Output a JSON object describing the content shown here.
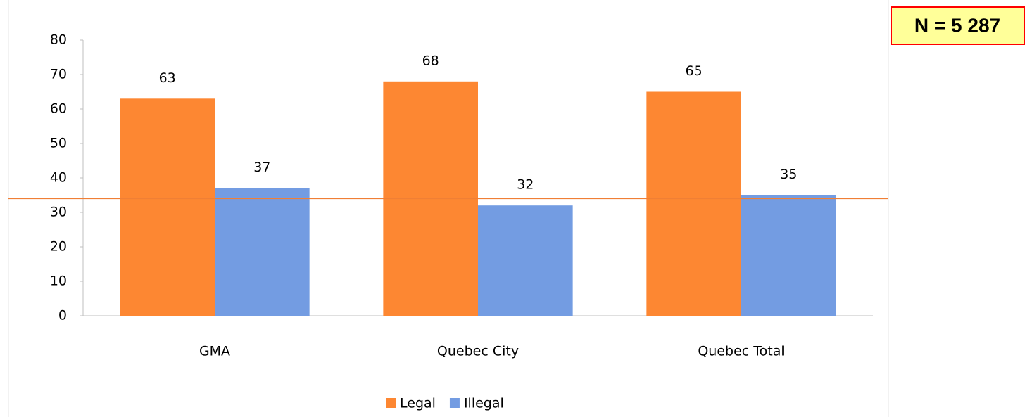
{
  "chart_data": {
    "type": "bar",
    "categories": [
      "GMA",
      "Quebec City",
      "Quebec Total"
    ],
    "series": [
      {
        "name": "Legal",
        "color": "#fd8732",
        "values": [
          63,
          68,
          65
        ]
      },
      {
        "name": "Illegal",
        "color": "#739ce2",
        "values": [
          37,
          32,
          35
        ]
      }
    ],
    "ylim": [
      0,
      80
    ],
    "yticks": [
      0,
      10,
      20,
      30,
      40,
      50,
      60,
      70,
      80
    ],
    "reference_line": {
      "value": 34,
      "color": "#f07f35"
    },
    "annotation": "N = 5 287",
    "legend": "bottom"
  }
}
